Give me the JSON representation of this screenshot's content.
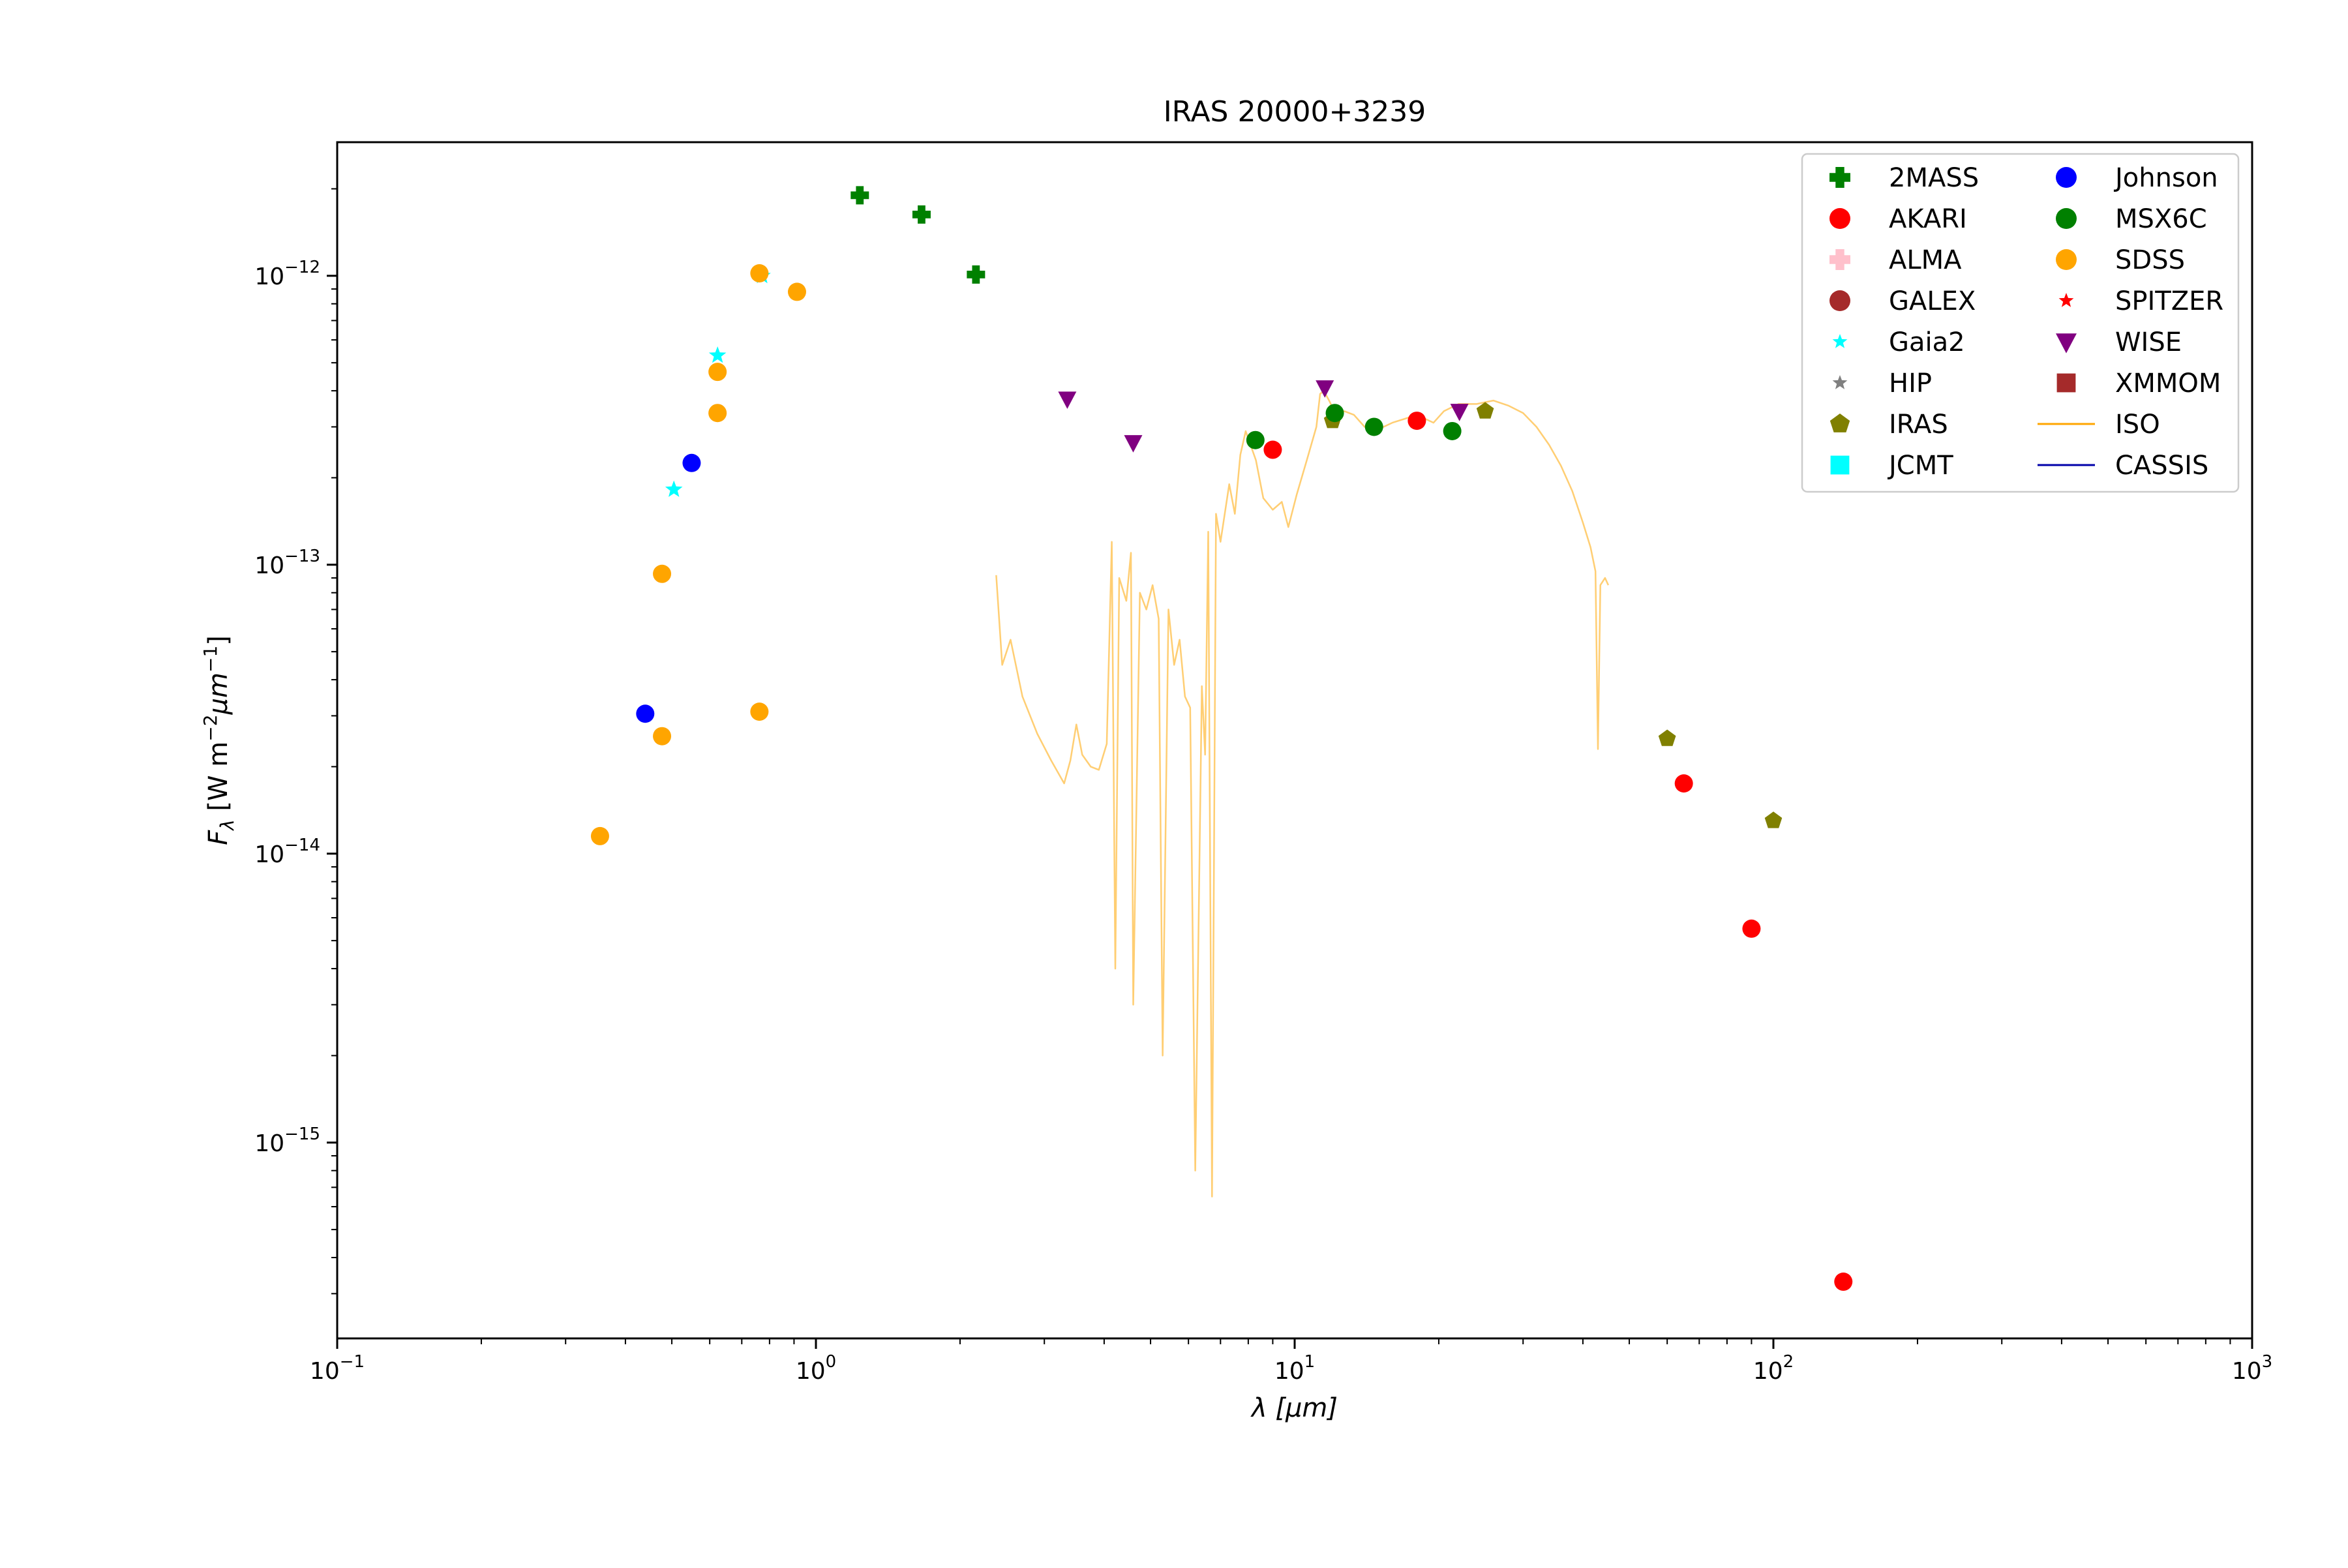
{
  "chart_data": {
    "type": "scatter",
    "title": "IRAS 20000+3239",
    "xlabel": "λ [μm]",
    "ylabel": "F_λ [W m^-2 μm^-1]",
    "xscale": "log",
    "yscale": "log",
    "xlim": [
      0.1,
      1000
    ],
    "ylim": [
      2.1e-16,
      2.9e-12
    ],
    "x_ticks": [
      {
        "value": 0.1,
        "base": "10",
        "exp": "−1"
      },
      {
        "value": 1,
        "base": "10",
        "exp": "0"
      },
      {
        "value": 10,
        "base": "10",
        "exp": "1"
      },
      {
        "value": 100,
        "base": "10",
        "exp": "2"
      },
      {
        "value": 1000,
        "base": "10",
        "exp": "3"
      }
    ],
    "y_ticks": [
      {
        "value": 1e-15,
        "base": "10",
        "exp": "−15"
      },
      {
        "value": 1e-14,
        "base": "10",
        "exp": "−14"
      },
      {
        "value": 1e-13,
        "base": "10",
        "exp": "−13"
      },
      {
        "value": 1e-12,
        "base": "10",
        "exp": "−12"
      }
    ],
    "legend_position": "top-right",
    "legend_columns": 2,
    "series": [
      {
        "name": "2MASS",
        "marker": "plus",
        "color": "#008000",
        "points": [
          [
            1.235,
            1.9e-12
          ],
          [
            1.662,
            1.63e-12
          ],
          [
            2.159,
            1.01e-12
          ]
        ]
      },
      {
        "name": "AKARI",
        "marker": "circle",
        "color": "#ff0000",
        "points": [
          [
            9,
            2.5e-13
          ],
          [
            18,
            3.15e-13
          ],
          [
            65,
            1.75e-14
          ],
          [
            90,
            5.5e-15
          ],
          [
            140,
            3.3e-16
          ]
        ]
      },
      {
        "name": "ALMA",
        "marker": "plus",
        "color": "#ffc0cb",
        "points": []
      },
      {
        "name": "GALEX",
        "marker": "circle",
        "color": "#a52a2a",
        "points": []
      },
      {
        "name": "Gaia2",
        "marker": "star",
        "color": "#00ffff",
        "points": [
          [
            0.505,
            1.82e-13
          ],
          [
            0.623,
            5.3e-13
          ],
          [
            0.772,
            1e-12
          ]
        ]
      },
      {
        "name": "HIP",
        "marker": "star",
        "color": "#808080",
        "points": []
      },
      {
        "name": "IRAS",
        "marker": "pentagon",
        "color": "#808000",
        "points": [
          [
            12,
            3.15e-13
          ],
          [
            25,
            3.4e-13
          ],
          [
            60,
            2.5e-14
          ],
          [
            100,
            1.3e-14
          ]
        ]
      },
      {
        "name": "JCMT",
        "marker": "square",
        "color": "#00ffff",
        "points": []
      },
      {
        "name": "Johnson",
        "marker": "circle",
        "color": "#0000ff",
        "points": [
          [
            0.44,
            3.05e-14
          ],
          [
            0.55,
            2.25e-13
          ]
        ]
      },
      {
        "name": "MSX6C",
        "marker": "circle",
        "color": "#008000",
        "points": [
          [
            8.28,
            2.7e-13
          ],
          [
            12.13,
            3.35e-13
          ],
          [
            14.65,
            3e-13
          ],
          [
            21.34,
            2.9e-13
          ]
        ]
      },
      {
        "name": "SDSS",
        "marker": "circle",
        "color": "#ffa500",
        "points": [
          [
            0.354,
            1.15e-14
          ],
          [
            0.477,
            9.3e-14
          ],
          [
            0.477,
            2.55e-14
          ],
          [
            0.623,
            4.65e-13
          ],
          [
            0.623,
            3.35e-13
          ],
          [
            0.762,
            1.02e-12
          ],
          [
            0.762,
            3.1e-14
          ],
          [
            0.913,
            8.8e-13
          ]
        ]
      },
      {
        "name": "SPITZER",
        "marker": "star",
        "color": "#ff0000",
        "points": []
      },
      {
        "name": "WISE",
        "marker": "triangle-down",
        "color": "#800080",
        "points": [
          [
            3.35,
            3.75e-13
          ],
          [
            4.6,
            2.65e-13
          ],
          [
            11.56,
            4.1e-13
          ],
          [
            22.09,
            3.4e-13
          ]
        ]
      },
      {
        "name": "XMMOM",
        "marker": "square",
        "color": "#a52a2a",
        "points": []
      },
      {
        "name": "ISO",
        "marker": "line",
        "color": "#ffa500",
        "line": [
          [
            2.38,
            9.2e-14
          ],
          [
            2.45,
            4.5e-14
          ],
          [
            2.55,
            5.5e-14
          ],
          [
            2.7,
            3.5e-14
          ],
          [
            2.9,
            2.6e-14
          ],
          [
            3.1,
            2.1e-14
          ],
          [
            3.3,
            1.75e-14
          ],
          [
            3.4,
            2.1e-14
          ],
          [
            3.5,
            2.8e-14
          ],
          [
            3.6,
            2.2e-14
          ],
          [
            3.75,
            2e-14
          ],
          [
            3.9,
            1.95e-14
          ],
          [
            4.05,
            2.4e-14
          ],
          [
            4.15,
            1.2e-13
          ],
          [
            4.22,
            4e-15
          ],
          [
            4.3,
            9e-14
          ],
          [
            4.45,
            7.5e-14
          ],
          [
            4.55,
            1.1e-13
          ],
          [
            4.6,
            3e-15
          ],
          [
            4.75,
            8e-14
          ],
          [
            4.9,
            7e-14
          ],
          [
            5.05,
            8.5e-14
          ],
          [
            5.2,
            6.5e-14
          ],
          [
            5.3,
            2e-15
          ],
          [
            5.45,
            7e-14
          ],
          [
            5.6,
            4.5e-14
          ],
          [
            5.75,
            5.5e-14
          ],
          [
            5.9,
            3.5e-14
          ],
          [
            6.05,
            3.2e-14
          ],
          [
            6.2,
            8e-16
          ],
          [
            6.4,
            3.8e-14
          ],
          [
            6.5,
            2.2e-14
          ],
          [
            6.6,
            1.3e-13
          ],
          [
            6.72,
            6.5e-16
          ],
          [
            6.85,
            1.5e-13
          ],
          [
            7.0,
            1.2e-13
          ],
          [
            7.3,
            1.9e-13
          ],
          [
            7.5,
            1.5e-13
          ],
          [
            7.7,
            2.4e-13
          ],
          [
            7.9,
            2.9e-13
          ],
          [
            8.3,
            2.3e-13
          ],
          [
            8.6,
            1.7e-13
          ],
          [
            9.0,
            1.55e-13
          ],
          [
            9.4,
            1.65e-13
          ],
          [
            9.7,
            1.35e-13
          ],
          [
            10.1,
            1.75e-13
          ],
          [
            10.6,
            2.3e-13
          ],
          [
            11.1,
            3e-13
          ],
          [
            11.3,
            3.9e-13
          ],
          [
            11.5,
            4e-13
          ],
          [
            11.8,
            3.7e-13
          ],
          [
            12.2,
            3.3e-13
          ],
          [
            12.7,
            3.4e-13
          ],
          [
            13.3,
            3.3e-13
          ],
          [
            14.0,
            3e-13
          ],
          [
            15.0,
            2.95e-13
          ],
          [
            16.0,
            3.1e-13
          ],
          [
            17.0,
            3.2e-13
          ],
          [
            18.0,
            3.3e-13
          ],
          [
            19.5,
            3.1e-13
          ],
          [
            20.5,
            3.4e-13
          ],
          [
            22.0,
            3.6e-13
          ],
          [
            24.0,
            3.6e-13
          ],
          [
            26.0,
            3.7e-13
          ],
          [
            28.0,
            3.55e-13
          ],
          [
            30.0,
            3.35e-13
          ],
          [
            32.0,
            3e-13
          ],
          [
            34.0,
            2.6e-13
          ],
          [
            36.0,
            2.2e-13
          ],
          [
            38.0,
            1.8e-13
          ],
          [
            40.0,
            1.4e-13
          ],
          [
            41.5,
            1.15e-13
          ],
          [
            42.5,
            9.5e-14
          ],
          [
            43.0,
            2.3e-14
          ],
          [
            43.5,
            8.5e-14
          ],
          [
            44.5,
            9e-14
          ],
          [
            45.2,
            8.5e-14
          ]
        ]
      },
      {
        "name": "CASSIS",
        "marker": "line",
        "color": "#0000aa",
        "line": []
      }
    ]
  }
}
